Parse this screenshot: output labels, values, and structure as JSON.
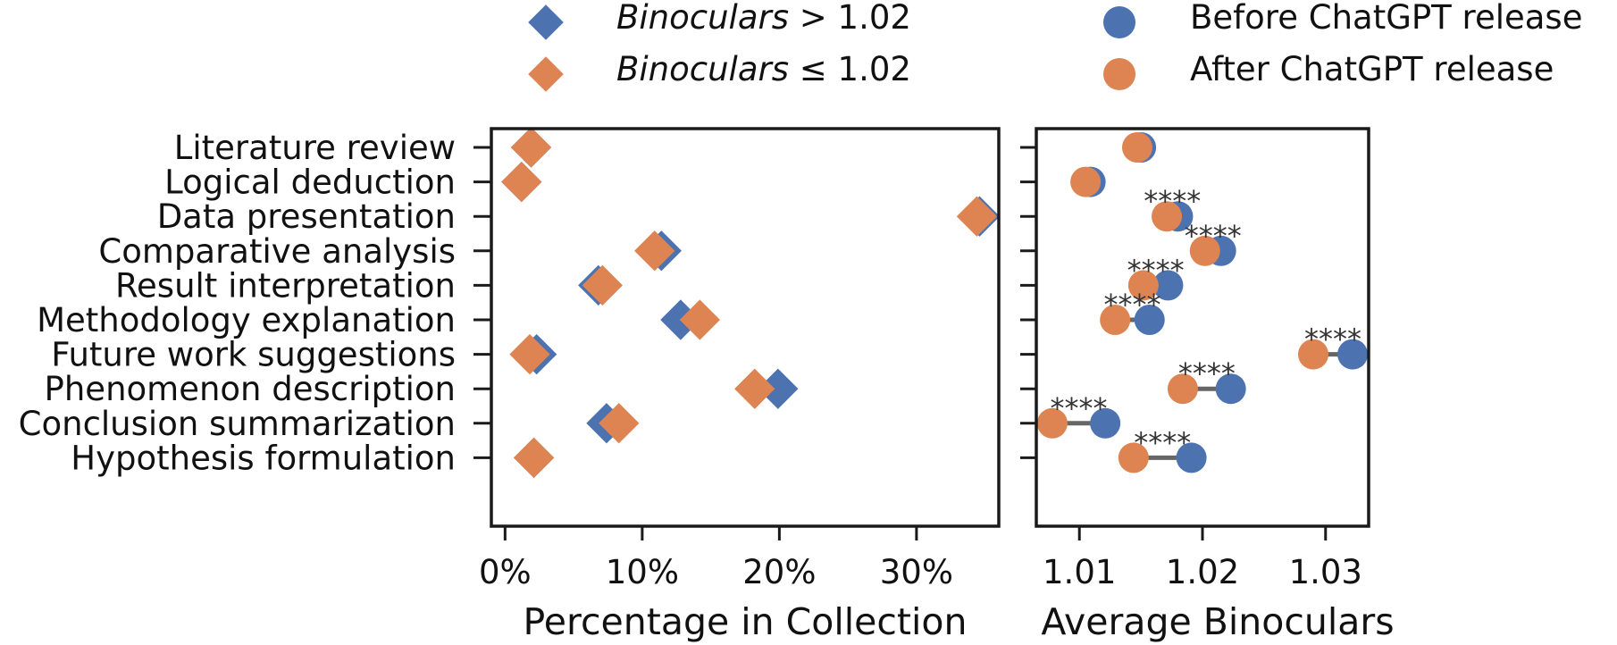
{
  "colors": {
    "blue": "#4c72b0",
    "orange": "#dd8452",
    "connector": "#666666"
  },
  "legend": {
    "diamond_blue": {
      "var": "Binoculars",
      "op": " > ",
      "num": "1.02"
    },
    "diamond_orange": {
      "var": "Binoculars",
      "op": " ≤ ",
      "num": "1.02"
    },
    "dot_blue": "Before ChatGPT release",
    "dot_orange": "After ChatGPT release"
  },
  "chart_data": [
    {
      "type": "scatter",
      "marker": "diamond",
      "xlabel": "Percentage in Collection",
      "xlim": [
        -1,
        36
      ],
      "xticks": [
        0,
        10,
        20,
        30
      ],
      "xtick_labels": [
        "0%",
        "10%",
        "20%",
        "30%"
      ],
      "categories": [
        "Literature review",
        "Logical deduction",
        "Data presentation",
        "Comparative analysis",
        "Result interpretation",
        "Methodology explanation",
        "Future work suggestions",
        "Phenomenon description",
        "Conclusion summarization",
        "Hypothesis formulation"
      ],
      "series": [
        {
          "color": "blue",
          "values": [
            1.9,
            1.2,
            34.6,
            11.4,
            6.8,
            12.8,
            2.3,
            19.9,
            7.4,
            2.1
          ]
        },
        {
          "color": "orange",
          "values": [
            1.9,
            1.2,
            34.4,
            10.9,
            7.1,
            14.2,
            1.8,
            18.2,
            8.3,
            2.1
          ]
        }
      ]
    },
    {
      "type": "scatter",
      "marker": "circle",
      "xlabel": "Average Binoculars",
      "xlim": [
        1.0065,
        1.0335
      ],
      "xticks": [
        1.01,
        1.02,
        1.03
      ],
      "xtick_labels": [
        "1.01",
        "1.02",
        "1.03"
      ],
      "series": [
        {
          "color": "blue",
          "values": [
            1.015,
            1.0109,
            1.018,
            1.0215,
            1.0172,
            1.0157,
            1.0322,
            1.0223,
            1.0121,
            1.0191
          ]
        },
        {
          "color": "orange",
          "values": [
            1.0147,
            1.0105,
            1.0171,
            1.0202,
            1.0152,
            1.0129,
            1.029,
            1.0184,
            1.0078,
            1.0144
          ]
        }
      ],
      "significance": [
        "",
        "",
        "****",
        "****",
        "****",
        "****",
        "****",
        "****",
        "****",
        "****"
      ]
    }
  ]
}
